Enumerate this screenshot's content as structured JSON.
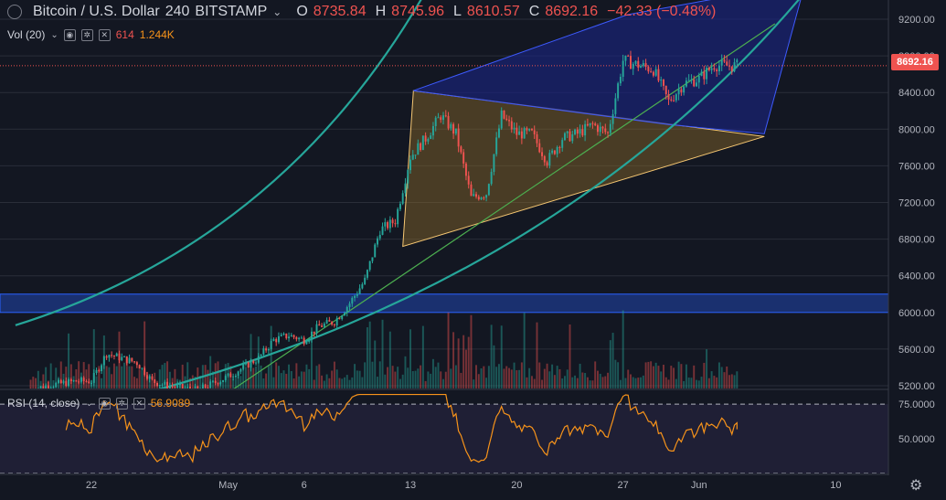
{
  "header": {
    "symbol": "Bitcoin / U.S. Dollar",
    "interval": "240",
    "exchange": "BITSTAMP",
    "open_label": "O",
    "open": "8735.84",
    "high_label": "H",
    "high": "8745.96",
    "low_label": "L",
    "low": "8610.57",
    "close_label": "C",
    "close": "8692.16",
    "change": "−42.33 (−0.48%)"
  },
  "volume_indicator": {
    "label": "Vol (20)",
    "value": "614",
    "ma_value": "1.244K"
  },
  "rsi_indicator": {
    "label": "RSI (14, close)",
    "value": "56.9089"
  },
  "current_price_label": "8692.16",
  "colors": {
    "background": "#131722",
    "up": "#26a69a",
    "down": "#ef5350",
    "triangle_fill": "#8c6a2a",
    "wedge_fill": "#1a237e",
    "support_zone": "#1e3a8a",
    "trend_line": "#4caf50",
    "curve": "#26a69a",
    "rsi_line": "#f7931a"
  },
  "chart_data": [
    {
      "type": "candlestick",
      "title": "Bitcoin / U.S. Dollar, 240, BITSTAMP",
      "y_ticks": [
        5200,
        5600,
        6000,
        6400,
        6800,
        7200,
        7600,
        8000,
        8400,
        8800,
        9200
      ],
      "x_ticks": [
        "22",
        "May",
        "6",
        "13",
        "20",
        "27",
        "Jun",
        "10"
      ],
      "ylim": [
        4950,
        9450
      ],
      "close_anchors": [
        {
          "date": "Apr 18",
          "close": 5150
        },
        {
          "date": "Apr 19",
          "close": 5200
        },
        {
          "date": "Apr 21",
          "close": 5250
        },
        {
          "date": "Apr 22",
          "close": 5250
        },
        {
          "date": "Apr 23",
          "close": 5550
        },
        {
          "date": "Apr 24",
          "close": 5500
        },
        {
          "date": "Apr 25",
          "close": 5450
        },
        {
          "date": "Apr 26",
          "close": 5250
        },
        {
          "date": "Apr 27",
          "close": 5200
        },
        {
          "date": "Apr 29",
          "close": 5150
        },
        {
          "date": "May 1",
          "close": 5300
        },
        {
          "date": "May 3",
          "close": 5500
        },
        {
          "date": "May 4",
          "close": 5700
        },
        {
          "date": "May 5",
          "close": 5750
        },
        {
          "date": "May 6",
          "close": 5700
        },
        {
          "date": "May 7",
          "close": 5850
        },
        {
          "date": "May 8",
          "close": 5900
        },
        {
          "date": "May 9",
          "close": 6100
        },
        {
          "date": "May 10",
          "close": 6350
        },
        {
          "date": "May 11",
          "close": 6900
        },
        {
          "date": "May 12",
          "close": 7000
        },
        {
          "date": "May 13",
          "close": 7700
        },
        {
          "date": "May 14",
          "close": 7900
        },
        {
          "date": "May 15",
          "close": 8150
        },
        {
          "date": "May 16",
          "close": 7950
        },
        {
          "date": "May 17",
          "close": 7250
        },
        {
          "date": "May 18",
          "close": 7300
        },
        {
          "date": "May 19",
          "close": 8150
        },
        {
          "date": "May 20",
          "close": 7950
        },
        {
          "date": "May 21",
          "close": 7950
        },
        {
          "date": "May 22",
          "close": 7650
        },
        {
          "date": "May 23",
          "close": 7900
        },
        {
          "date": "May 24",
          "close": 7950
        },
        {
          "date": "May 25",
          "close": 8050
        },
        {
          "date": "May 26",
          "close": 7950
        },
        {
          "date": "May 27",
          "close": 8750
        },
        {
          "date": "May 28",
          "close": 8700
        },
        {
          "date": "May 29",
          "close": 8650
        },
        {
          "date": "May 30",
          "close": 8300
        },
        {
          "date": "May 31",
          "close": 8500
        },
        {
          "date": "Jun 1",
          "close": 8550
        },
        {
          "date": "Jun 2",
          "close": 8700
        },
        {
          "date": "Jun 3",
          "close": 8692
        }
      ],
      "horizontal_zone": {
        "low": 6000,
        "high": 6200
      },
      "current_price": 8692.16
    },
    {
      "type": "line",
      "title": "RSI (14, close)",
      "y_ticks": [
        50,
        75
      ],
      "ylim": [
        25,
        85
      ],
      "last_value": 56.9089
    }
  ]
}
